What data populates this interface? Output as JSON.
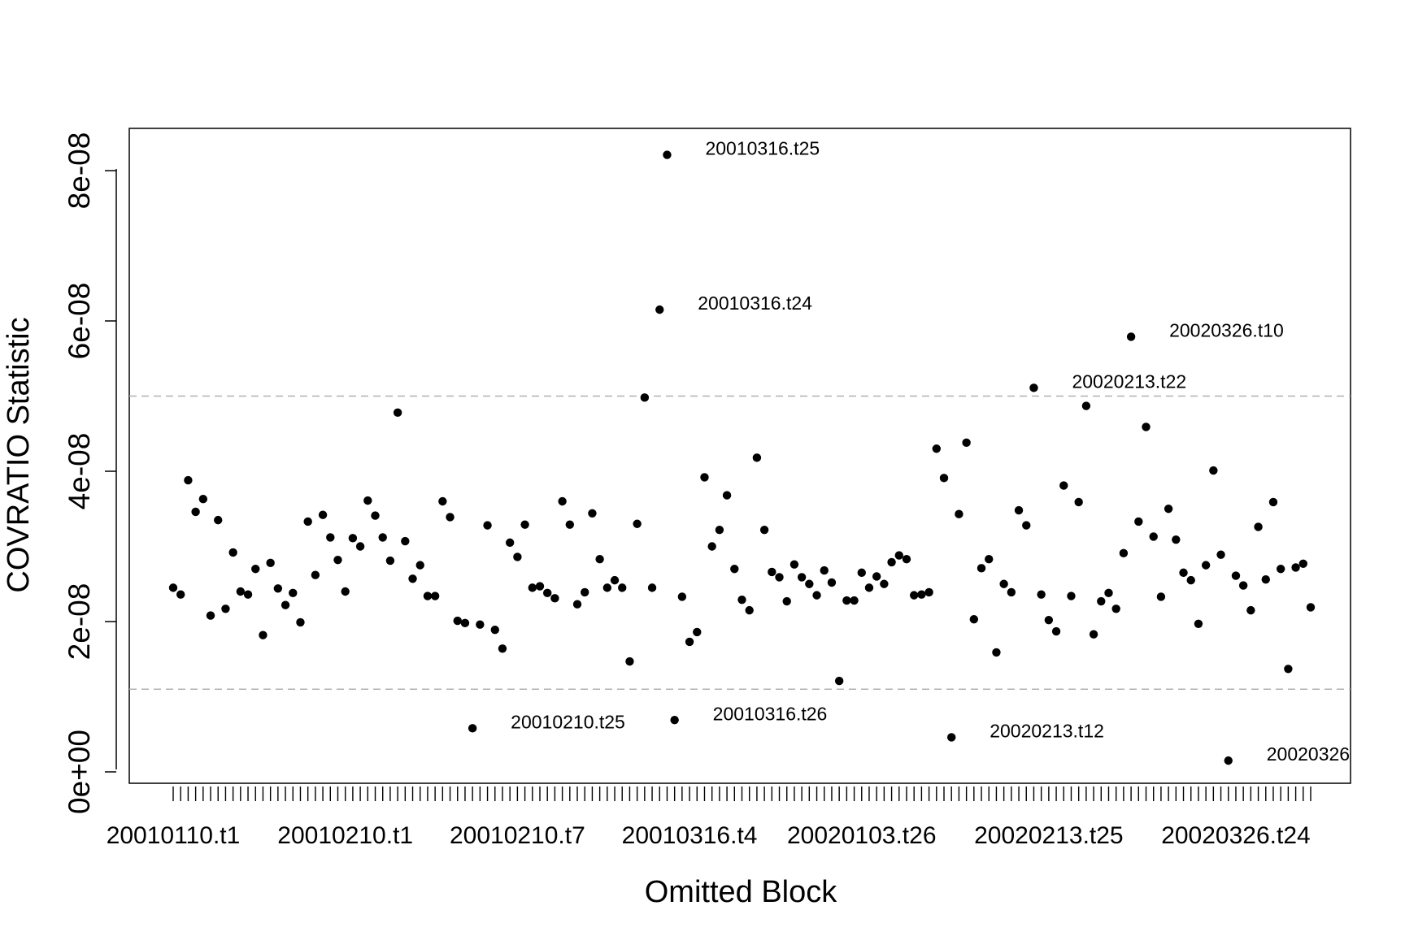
{
  "chart_data": {
    "type": "scatter",
    "xlabel": "Omitted Block",
    "ylabel": "COVRATIO Statistic",
    "ylim": [
      -2e-09,
      8.6e-08
    ],
    "y_ticks": [
      {
        "value": 0,
        "label": "0e+00"
      },
      {
        "value": 2e-08,
        "label": "2e-08"
      },
      {
        "value": 4e-08,
        "label": "4e-08"
      },
      {
        "value": 6e-08,
        "label": "6e-08"
      },
      {
        "value": 8e-08,
        "label": "8e-08"
      }
    ],
    "x_tick_labels": [
      {
        "index": 1,
        "label": "20010110.t1"
      },
      {
        "index": 24,
        "label": "20010210.t1"
      },
      {
        "index": 47,
        "label": "20010210.t7"
      },
      {
        "index": 70,
        "label": "20010316.t4"
      },
      {
        "index": 93,
        "label": "20020103.t26"
      },
      {
        "index": 118,
        "label": "20020213.t25"
      },
      {
        "index": 143,
        "label": "20020326.t24"
      }
    ],
    "reference_lines": [
      5e-08,
      1.1e-08
    ],
    "grid": false,
    "values": [
      2.45e-08,
      2.36e-08,
      3.88e-08,
      3.46e-08,
      3.63e-08,
      2.08e-08,
      3.35e-08,
      2.17e-08,
      2.92e-08,
      2.4e-08,
      2.36e-08,
      2.7e-08,
      1.82e-08,
      2.78e-08,
      2.44e-08,
      2.22e-08,
      2.38e-08,
      1.99e-08,
      3.33e-08,
      2.62e-08,
      3.42e-08,
      3.12e-08,
      2.82e-08,
      2.4e-08,
      3.11e-08,
      3e-08,
      3.61e-08,
      3.41e-08,
      3.12e-08,
      2.81e-08,
      4.78e-08,
      3.07e-08,
      2.57e-08,
      2.75e-08,
      2.34e-08,
      2.34e-08,
      3.6e-08,
      3.39e-08,
      2.01e-08,
      1.98e-08,
      5.8e-09,
      1.96e-08,
      3.28e-08,
      1.89e-08,
      1.64e-08,
      3.05e-08,
      2.86e-08,
      3.29e-08,
      2.45e-08,
      2.47e-08,
      2.38e-08,
      2.31e-08,
      3.6e-08,
      3.29e-08,
      2.23e-08,
      2.39e-08,
      3.44e-08,
      2.83e-08,
      2.45e-08,
      2.55e-08,
      2.45e-08,
      1.47e-08,
      3.3e-08,
      4.98e-08,
      2.45e-08,
      6.15e-08,
      8.21e-08,
      6.9e-09,
      2.33e-08,
      1.73e-08,
      1.86e-08,
      3.92e-08,
      3e-08,
      3.22e-08,
      3.68e-08,
      2.7e-08,
      2.29e-08,
      2.15e-08,
      4.18e-08,
      3.22e-08,
      2.66e-08,
      2.59e-08,
      2.27e-08,
      2.76e-08,
      2.59e-08,
      2.5e-08,
      2.35e-08,
      2.68e-08,
      2.52e-08,
      1.21e-08,
      2.28e-08,
      2.28e-08,
      2.65e-08,
      2.45e-08,
      2.6e-08,
      2.5e-08,
      2.79e-08,
      2.88e-08,
      2.83e-08,
      2.35e-08,
      2.36e-08,
      2.39e-08,
      4.3e-08,
      3.91e-08,
      4.6e-09,
      3.43e-08,
      4.38e-08,
      2.03e-08,
      2.71e-08,
      2.83e-08,
      1.59e-08,
      2.5e-08,
      2.39e-08,
      3.48e-08,
      3.28e-08,
      5.11e-08,
      2.36e-08,
      2.02e-08,
      1.87e-08,
      3.81e-08,
      2.34e-08,
      3.59e-08,
      4.87e-08,
      1.83e-08,
      2.27e-08,
      2.38e-08,
      2.17e-08,
      2.91e-08,
      5.79e-08,
      3.33e-08,
      4.59e-08,
      3.13e-08,
      2.33e-08,
      3.5e-08,
      3.09e-08,
      2.65e-08,
      2.55e-08,
      1.97e-08,
      2.75e-08,
      4.01e-08,
      2.89e-08,
      1.5e-09,
      2.61e-08,
      2.48e-08,
      2.15e-08,
      3.26e-08,
      2.56e-08,
      3.59e-08,
      2.7e-08,
      1.37e-08,
      2.72e-08,
      2.77e-08,
      2.19e-08
    ],
    "annotations": [
      {
        "index": 67,
        "label": "20010316.t25"
      },
      {
        "index": 66,
        "label": "20010316.t24"
      },
      {
        "index": 41,
        "label": "20010210.t25"
      },
      {
        "index": 68,
        "label": "20010316.t26"
      },
      {
        "index": 105,
        "label": "20020213.t12"
      },
      {
        "index": 116,
        "label": "20020213.t22"
      },
      {
        "index": 129,
        "label": "20020326.t10"
      },
      {
        "index": 142,
        "label": "20020326"
      }
    ]
  }
}
